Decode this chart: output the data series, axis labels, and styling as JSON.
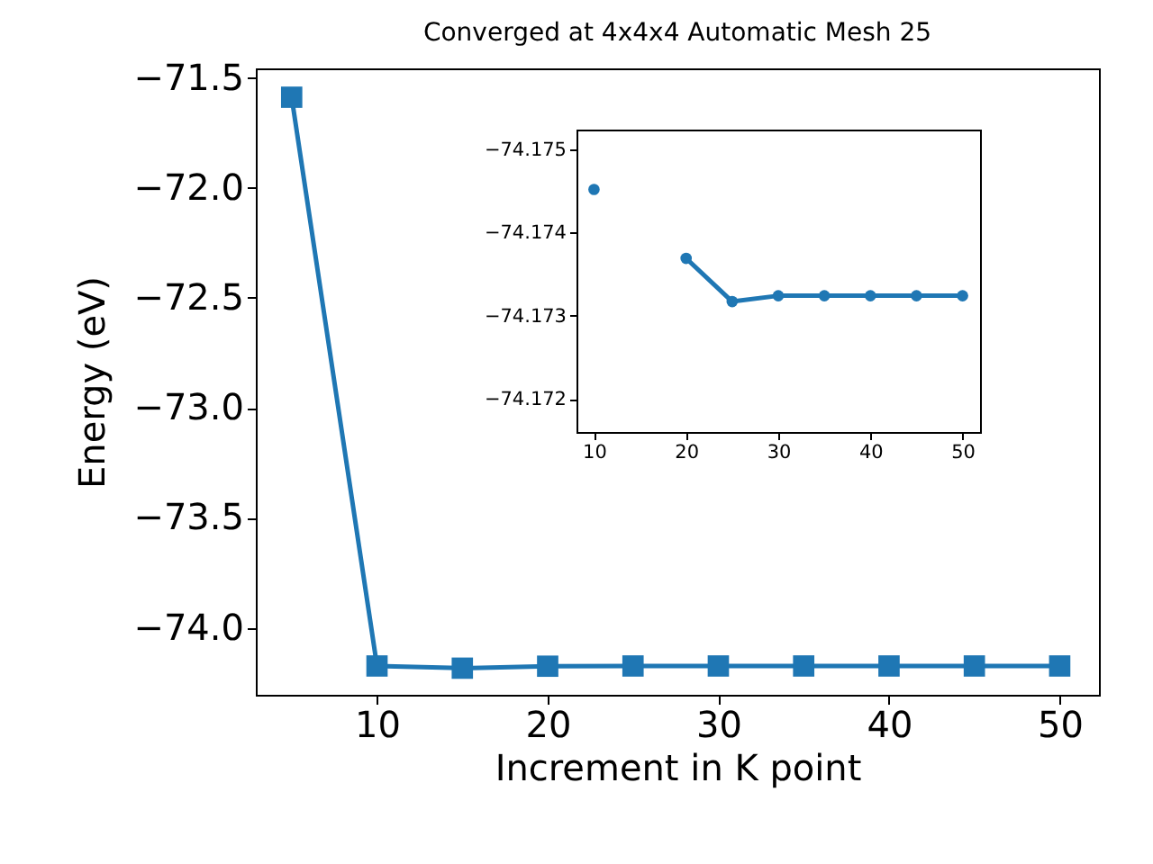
{
  "chart_data": [
    {
      "type": "line",
      "title": "Converged at 4x4x4 Automatic Mesh 25",
      "xlabel": "Increment in K point",
      "ylabel": "Energy (eV)",
      "x": [
        5,
        10,
        15,
        20,
        25,
        30,
        35,
        40,
        45,
        50
      ],
      "series": [
        {
          "color": "#1f77b4",
          "values": [
            -71.588,
            -74.173,
            -74.183,
            -74.174,
            -74.173,
            -74.173,
            -74.173,
            -74.173,
            -74.173,
            -74.173
          ]
        }
      ],
      "xlim": [
        2.9,
        52.3
      ],
      "xticks": [
        10,
        20,
        30,
        40,
        50
      ],
      "ylim": [
        -74.304,
        -71.457
      ],
      "yticks": [
        {
          "value": -74.0,
          "label": "−74.0"
        },
        {
          "value": -73.5,
          "label": "−73.5"
        },
        {
          "value": -73.0,
          "label": "−73.0"
        },
        {
          "value": -72.5,
          "label": "−72.5"
        },
        {
          "value": -72.0,
          "label": "−72.0"
        },
        {
          "value": -71.5,
          "label": "−71.5"
        }
      ],
      "marker": "square",
      "grid": false,
      "legend": false
    },
    {
      "type": "line",
      "x": [
        10,
        15,
        20,
        25,
        30,
        35,
        40,
        45,
        50
      ],
      "series": [
        {
          "color": "#1f77b4",
          "values": [
            -74.17452,
            null,
            -74.17369,
            -74.17317,
            -74.17324,
            -74.17324,
            -74.17324,
            -74.17324,
            -74.17324
          ]
        }
      ],
      "xlim": [
        8.1,
        51.9
      ],
      "xticks": [
        10,
        20,
        30,
        40,
        50
      ],
      "ylim": [
        -74.1716,
        -74.17524
      ],
      "yticks": [
        -74.175,
        -74.174,
        -74.173,
        -74.172
      ],
      "marker": "circle",
      "grid": false,
      "legend": false
    }
  ]
}
